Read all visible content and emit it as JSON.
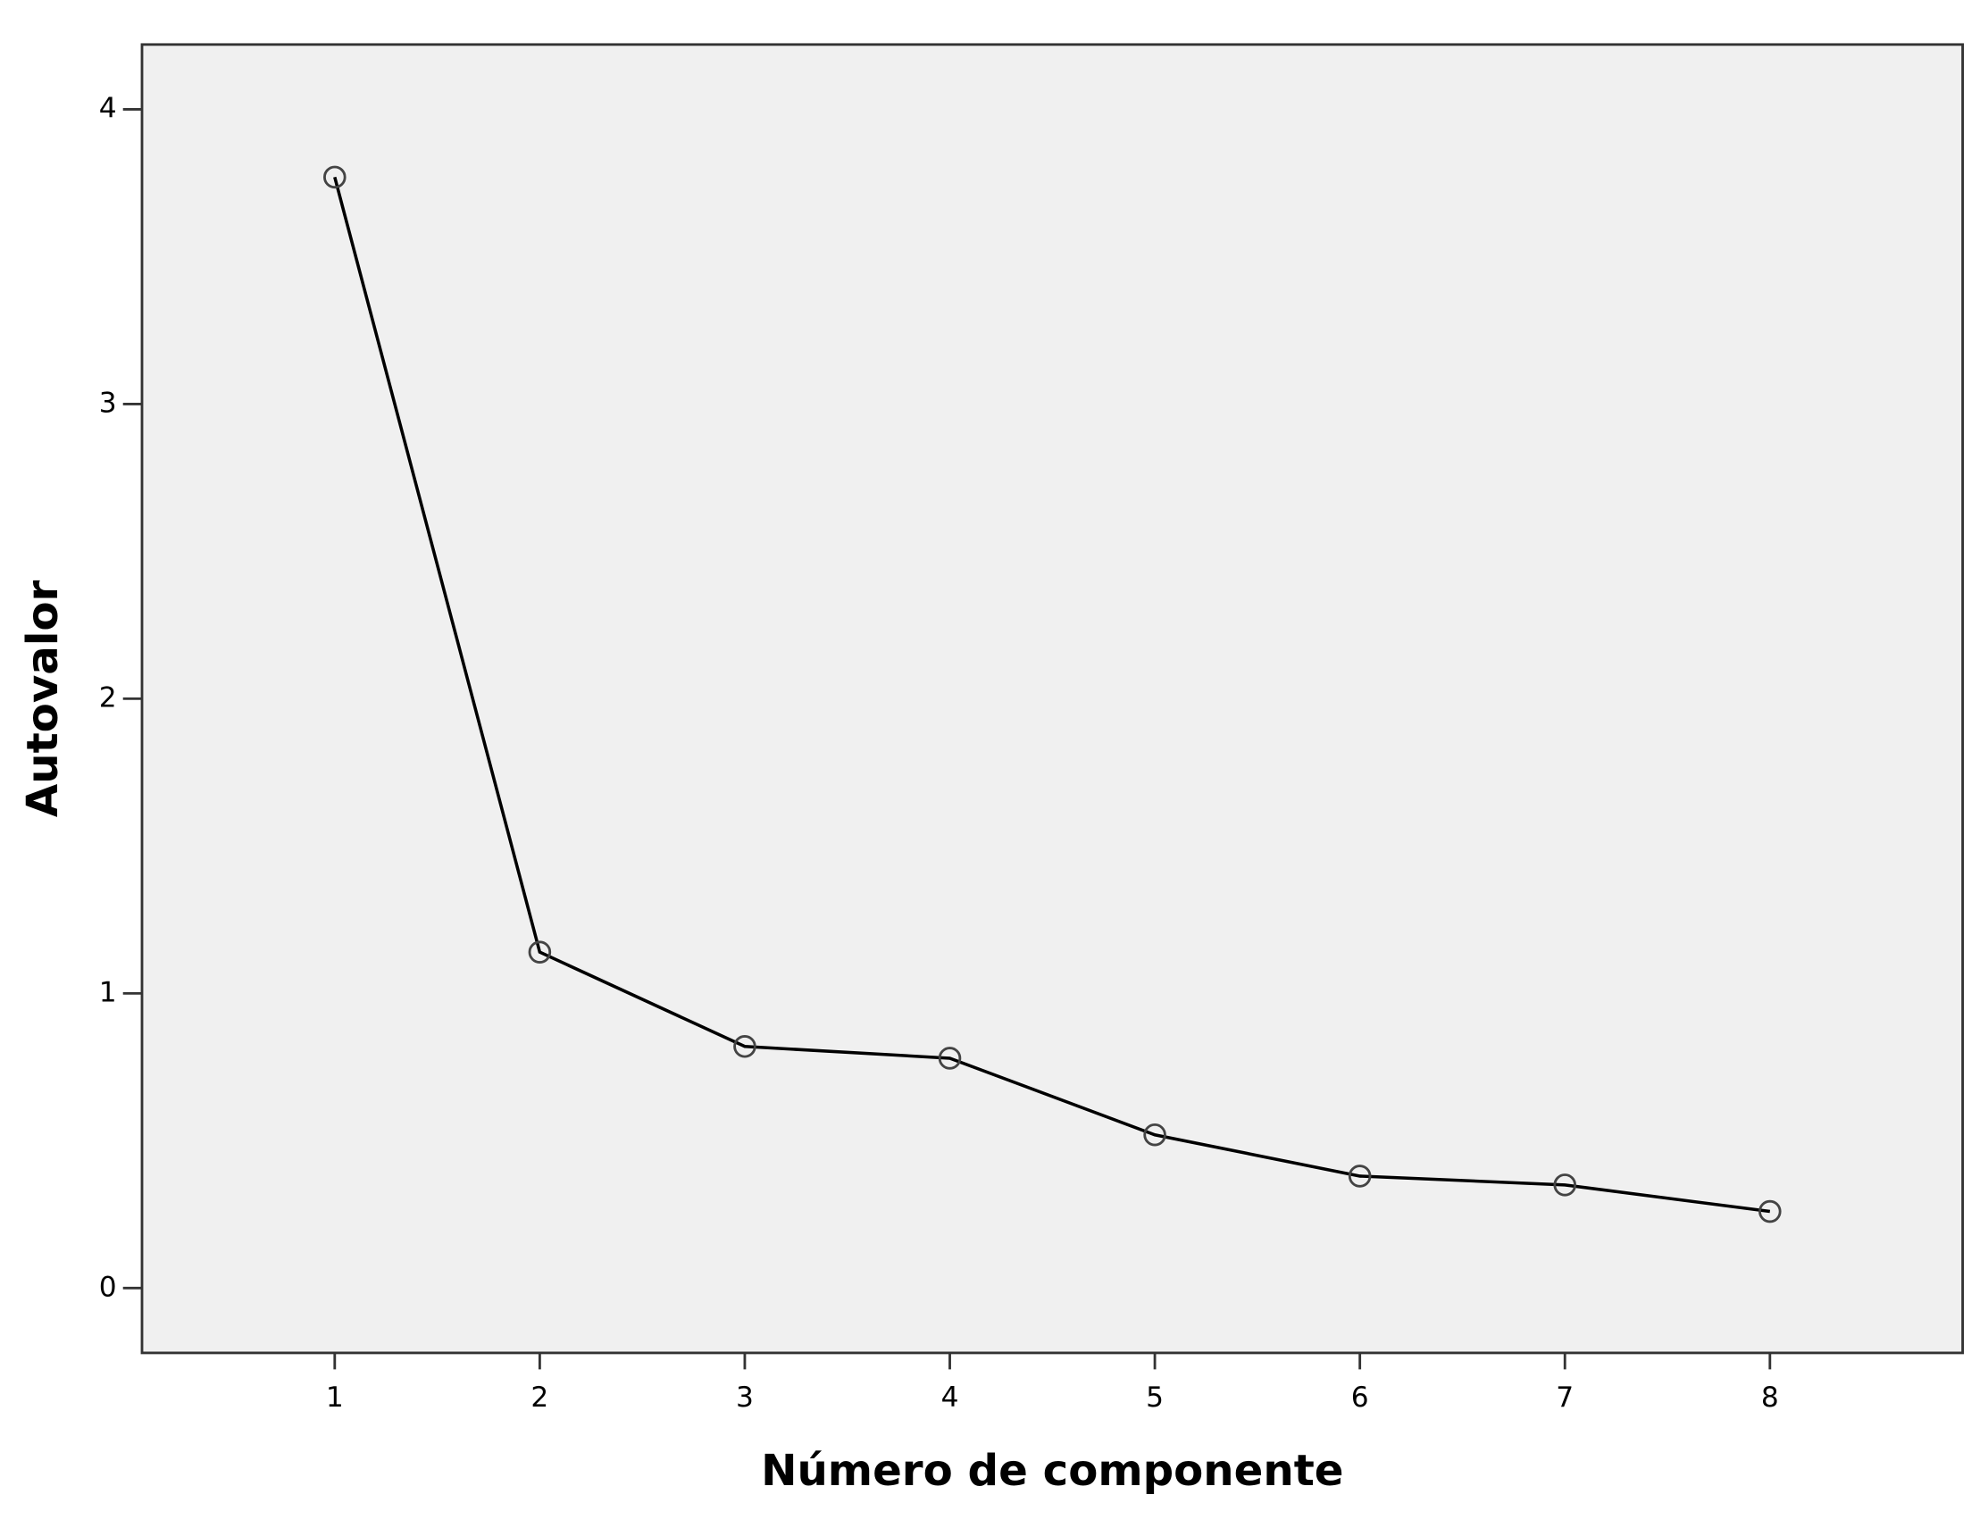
{
  "chart_data": {
    "type": "line",
    "x_label": "Número de componente",
    "y_label": "Autovalor",
    "x": [
      1,
      2,
      3,
      4,
      5,
      6,
      7,
      8
    ],
    "series": [
      {
        "name": "Autovalor",
        "color": "#000000",
        "values": [
          3.77,
          1.14,
          0.82,
          0.78,
          0.52,
          0.38,
          0.35,
          0.26
        ]
      }
    ],
    "xlim": [
      0.06,
      8.94
    ],
    "xticks": [
      1,
      2,
      3,
      4,
      5,
      6,
      7,
      8
    ],
    "ylim": [
      -0.22,
      4.22
    ],
    "yticks": [
      0,
      1,
      2,
      3,
      4
    ],
    "grid": false,
    "background": "#f0f0f0",
    "marker": "open-circle"
  }
}
